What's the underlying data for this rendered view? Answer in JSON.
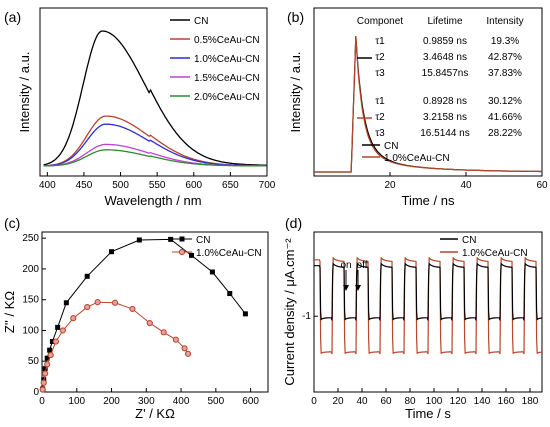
{
  "chart_data": [
    {
      "panel_label": "(a)",
      "type": "line",
      "xlabel": "Wavelength / nm",
      "ylabel": "Intensity / a.u.",
      "xlim": [
        390,
        700
      ],
      "xticks": [
        400,
        450,
        500,
        550,
        600,
        650,
        700
      ],
      "yticks_shown": false,
      "legend_position": "top-right",
      "series": [
        {
          "name": "CN",
          "color": "#000000",
          "peak_x": 475,
          "peak_y": 1.0
        },
        {
          "name": "0.5%CeAu-CN",
          "color": "#b5462b",
          "peak_x": 480,
          "peak_y": 0.37
        },
        {
          "name": "1.0%CeAu-CN",
          "color": "#2d2dd6",
          "peak_x": 480,
          "peak_y": 0.31
        },
        {
          "name": "1.5%CeAu-CN",
          "color": "#c43fd6",
          "peak_x": 480,
          "peak_y": 0.16
        },
        {
          "name": "2.0%CeAu-CN",
          "color": "#2f8a2f",
          "peak_x": 480,
          "peak_y": 0.12
        }
      ]
    },
    {
      "panel_label": "(b)",
      "type": "line",
      "xlabel": "Time / ns",
      "ylabel": "Intensity / a.u.",
      "xlim": [
        0,
        60
      ],
      "xticks": [
        20,
        40,
        60
      ],
      "yticks_shown": false,
      "legend_position": "bottom-center",
      "series": [
        {
          "name": "CN",
          "color": "#000000",
          "peak_x": 11,
          "decay_tau": 3.5
        },
        {
          "name": "1.0%CeAu-CN",
          "color": "#b5462b",
          "peak_x": 11,
          "decay_tau": 3.2
        }
      ],
      "table": {
        "headers": [
          "Componet",
          "Lifetime",
          "Intensity"
        ],
        "groups": [
          {
            "color": "#000000",
            "rows": [
              [
                "τ1",
                "0.9859 ns",
                "19.3%"
              ],
              [
                "τ2",
                "3.4648 ns",
                "42.87%"
              ],
              [
                "τ3",
                "15.8457ns",
                "37.83%"
              ]
            ]
          },
          {
            "color": "#b5462b",
            "rows": [
              [
                "τ1",
                "0.8928 ns",
                "30.12%"
              ],
              [
                "τ2",
                "3.2158 ns",
                "41.66%"
              ],
              [
                "τ3",
                "16.5144 ns",
                "28.22%"
              ]
            ]
          }
        ]
      }
    },
    {
      "panel_label": "(c)",
      "type": "scatter",
      "xlabel": "Z' / KΩ",
      "ylabel": "Z'' / KΩ",
      "xlim": [
        0,
        650
      ],
      "ylim": [
        0,
        260
      ],
      "xticks": [
        0,
        100,
        200,
        300,
        400,
        500,
        600
      ],
      "yticks": [
        0,
        50,
        100,
        150,
        200,
        250
      ],
      "legend_position": "top-right",
      "series": [
        {
          "name": "CN",
          "color": "#000000",
          "marker": "square",
          "points": [
            [
              2,
              5
            ],
            [
              5,
              20
            ],
            [
              9,
              38
            ],
            [
              15,
              55
            ],
            [
              22,
              68
            ],
            [
              30,
              82
            ],
            [
              45,
              105
            ],
            [
              70,
              145
            ],
            [
              130,
              188
            ],
            [
              200,
              228
            ],
            [
              280,
              247
            ],
            [
              370,
              248
            ],
            [
              430,
              222
            ],
            [
              490,
              195
            ],
            [
              540,
              160
            ],
            [
              585,
              127
            ]
          ]
        },
        {
          "name": "1.0%CeAu-CN",
          "color": "#b5462b",
          "marker": "circle",
          "points": [
            [
              2,
              4
            ],
            [
              5,
              15
            ],
            [
              9,
              30
            ],
            [
              15,
              45
            ],
            [
              25,
              60
            ],
            [
              40,
              82
            ],
            [
              60,
              100
            ],
            [
              90,
              120
            ],
            [
              130,
              138
            ],
            [
              160,
              146
            ],
            [
              210,
              145
            ],
            [
              260,
              135
            ],
            [
              310,
              112
            ],
            [
              350,
              97
            ],
            [
              385,
              85
            ],
            [
              410,
              71
            ],
            [
              420,
              62
            ]
          ]
        }
      ]
    },
    {
      "panel_label": "(d)",
      "type": "line",
      "xlabel": "Time / s",
      "ylabel": "Current density / μA.cm⁻²",
      "xlim": [
        0,
        190
      ],
      "ylim": [
        -1.9,
        0
      ],
      "xticks": [
        0,
        20,
        40,
        60,
        80,
        100,
        120,
        140,
        160,
        180
      ],
      "yticks": [
        -1
      ],
      "legend_position": "top-right",
      "annotations": [
        "on",
        "off"
      ],
      "series": [
        {
          "name": "CN",
          "color": "#000000",
          "high": -0.42,
          "low": -1.05
        },
        {
          "name": "1.0%CeAu-CN",
          "color": "#b5462b",
          "high": -0.35,
          "low": -1.45
        }
      ]
    }
  ]
}
